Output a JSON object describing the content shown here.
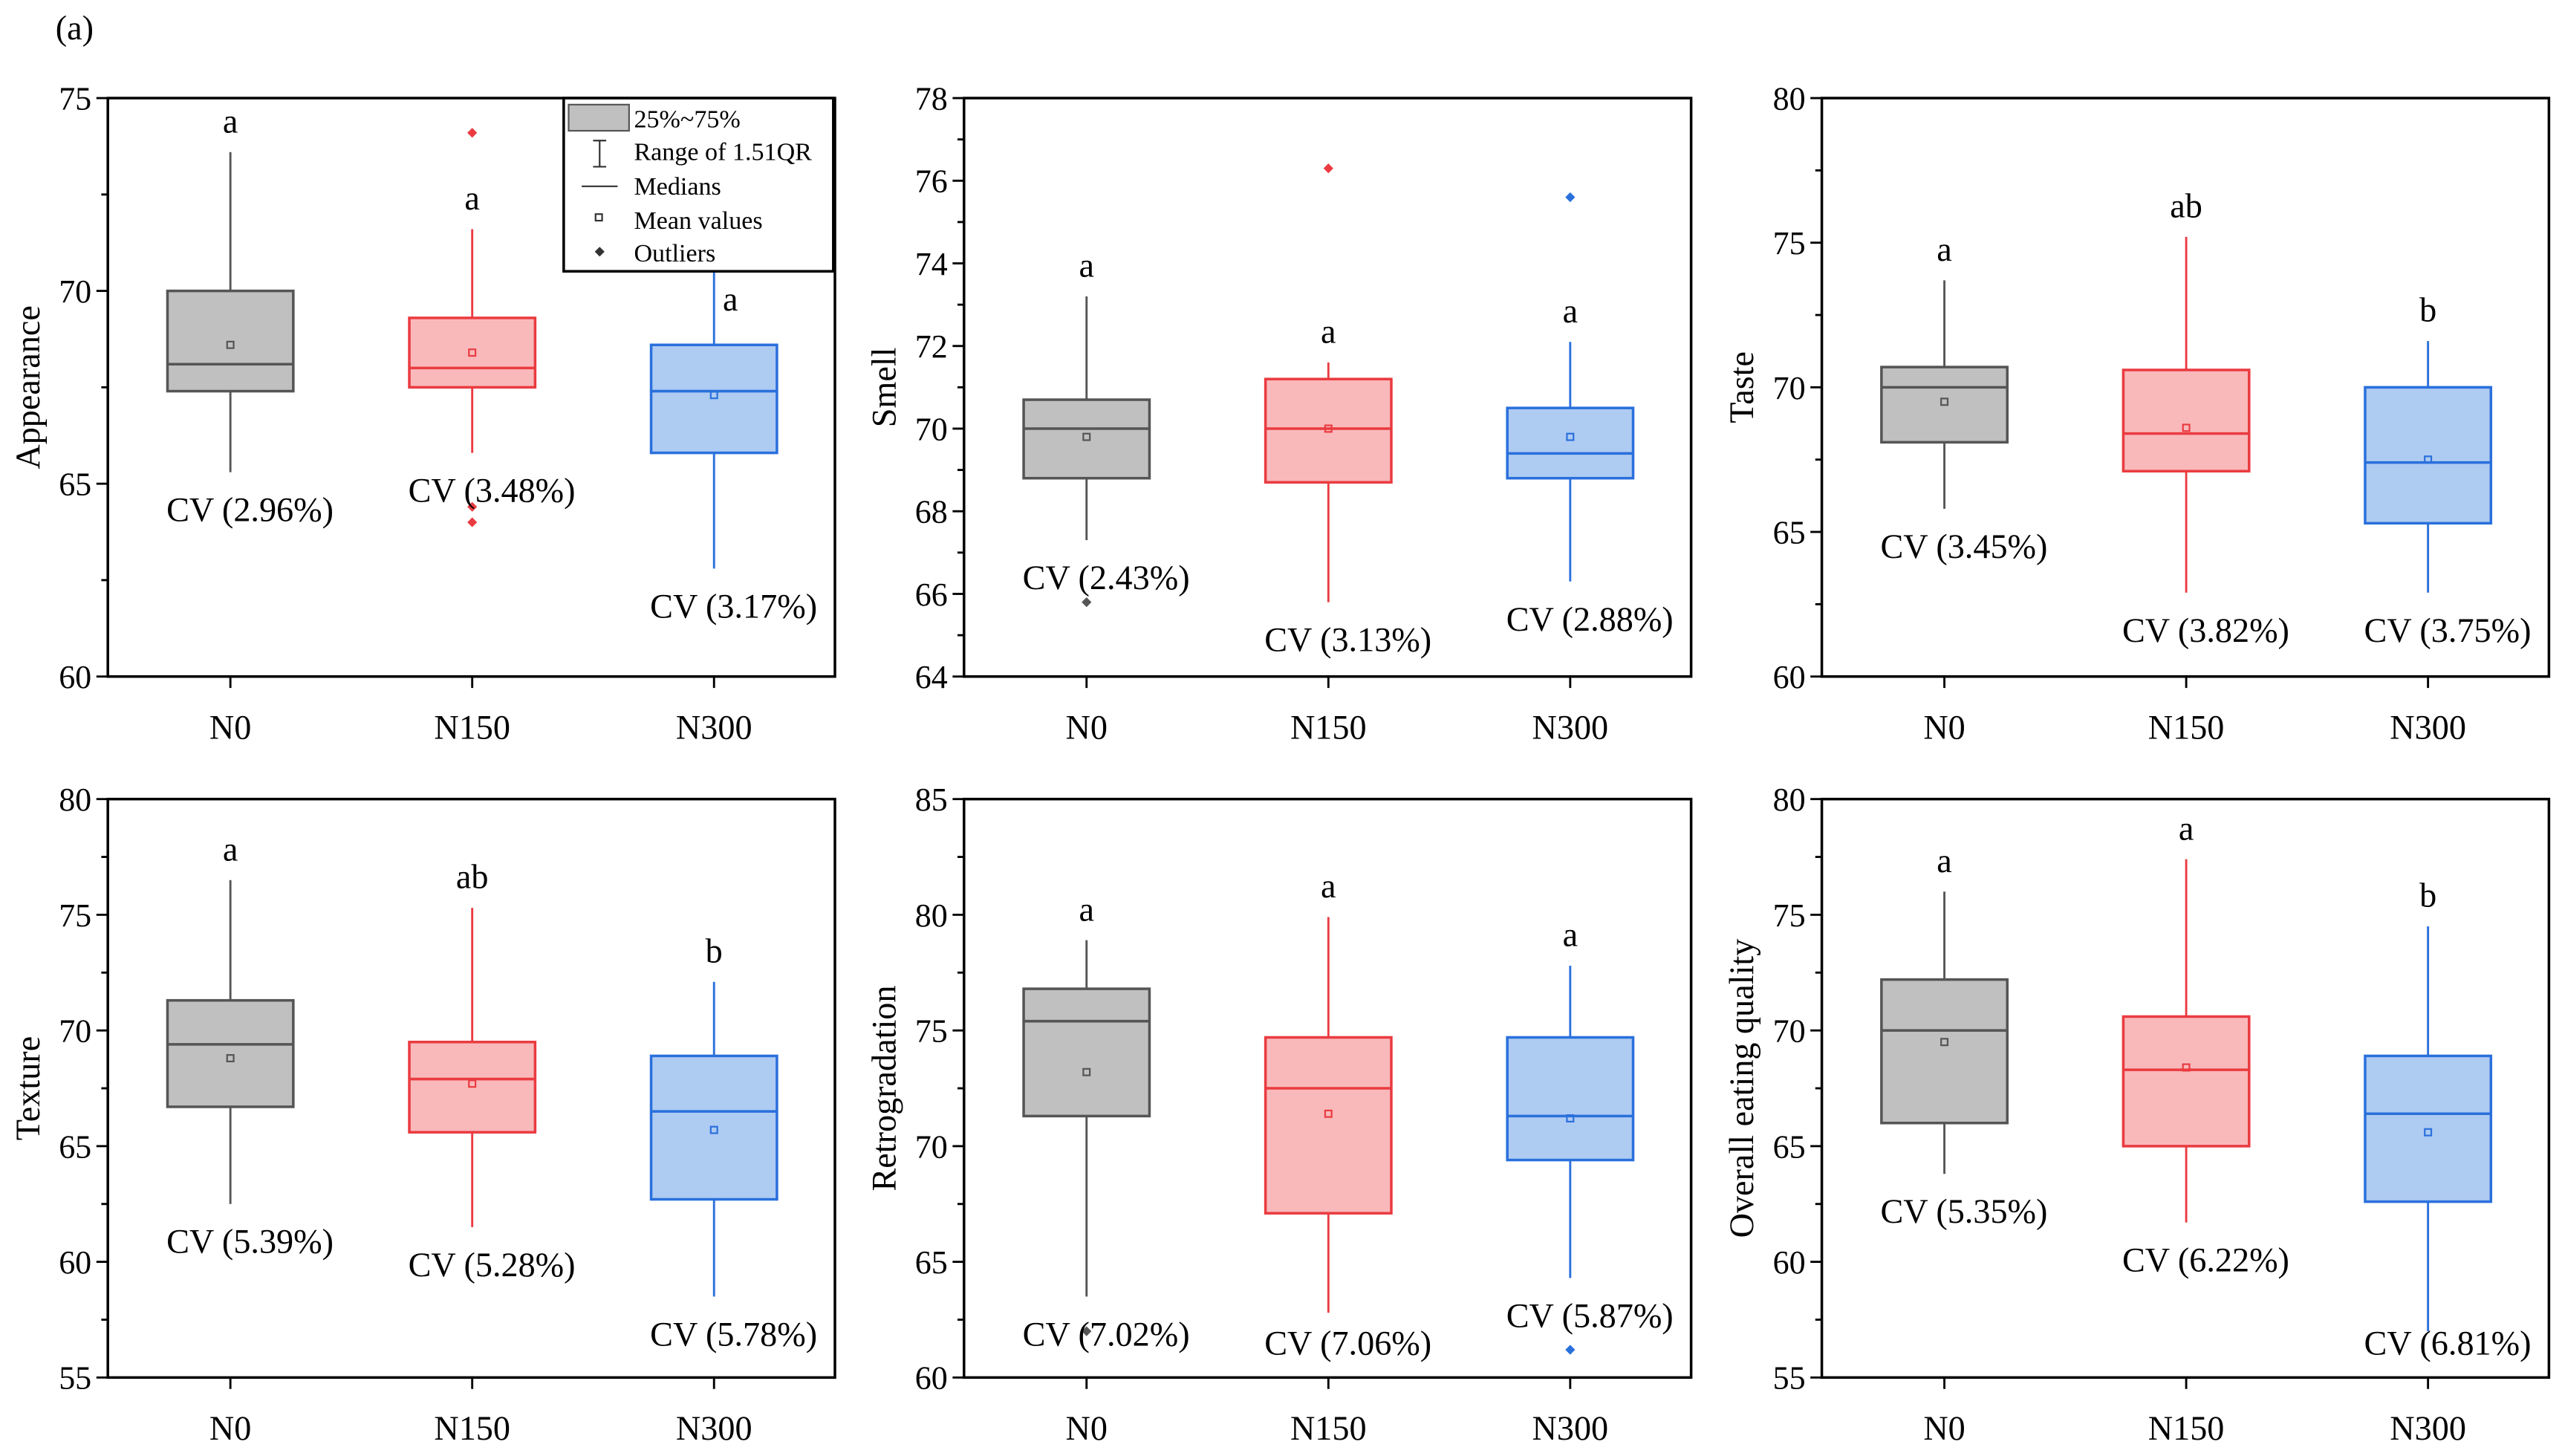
{
  "figure_label": "(a)",
  "legend": {
    "items": [
      "25%~75%",
      "Range of 1.51QR",
      "Medians",
      "Mean values",
      "Outliers"
    ]
  },
  "colors": {
    "N0": {
      "fill": "#c0c0c0",
      "stroke": "#555555"
    },
    "N150": {
      "fill": "#f9b9bb",
      "stroke": "#ea3b40"
    },
    "N300": {
      "fill": "#aecbf2",
      "stroke": "#2a70dc"
    }
  },
  "chart_data": [
    {
      "type": "box",
      "ylabel": "Appearance",
      "ylim": [
        60,
        75
      ],
      "yticks": [
        "60",
        "65",
        "70",
        "75"
      ],
      "ystep": 5,
      "categories": [
        "N0",
        "N150",
        "N300"
      ],
      "boxes": [
        {
          "min": 65.3,
          "q1": 67.4,
          "median": 68.1,
          "q3": 70.0,
          "max": 73.6,
          "mean": 68.6,
          "outliers": [],
          "letter": "a",
          "cv": "CV (2.96%)"
        },
        {
          "min": 65.8,
          "q1": 67.5,
          "median": 68.0,
          "q3": 69.3,
          "max": 71.6,
          "mean": 68.4,
          "outliers": [
            74.1,
            64.4,
            64.0
          ],
          "letter": "a",
          "cv": "CV (3.48%)"
        },
        {
          "min": 62.8,
          "q1": 65.8,
          "median": 67.4,
          "q3": 68.6,
          "max": 70.5,
          "mean": 67.3,
          "outliers": [],
          "letter": "a",
          "cv": "CV (3.17%)"
        }
      ]
    },
    {
      "type": "box",
      "ylabel": "Smell",
      "ylim": [
        64,
        78
      ],
      "yticks": [
        "64",
        "66",
        "68",
        "70",
        "72",
        "74",
        "76",
        "78"
      ],
      "ystep": 2,
      "categories": [
        "N0",
        "N150",
        "N300"
      ],
      "boxes": [
        {
          "min": 67.3,
          "q1": 68.8,
          "median": 70.0,
          "q3": 70.7,
          "max": 73.2,
          "mean": 69.8,
          "outliers": [
            65.8
          ],
          "letter": "a",
          "cv": "CV (2.43%)"
        },
        {
          "min": 65.8,
          "q1": 68.7,
          "median": 70.0,
          "q3": 71.2,
          "max": 71.6,
          "mean": 70.0,
          "outliers": [
            76.3
          ],
          "letter": "a",
          "cv": "CV (3.13%)"
        },
        {
          "min": 66.3,
          "q1": 68.8,
          "median": 69.4,
          "q3": 70.5,
          "max": 72.1,
          "mean": 69.8,
          "outliers": [
            75.6
          ],
          "letter": "a",
          "cv": "CV (2.88%)"
        }
      ]
    },
    {
      "type": "box",
      "ylabel": "Taste",
      "ylim": [
        60,
        80
      ],
      "yticks": [
        "60",
        "65",
        "70",
        "75",
        "80"
      ],
      "ystep": 5,
      "categories": [
        "N0",
        "N150",
        "N300"
      ],
      "boxes": [
        {
          "min": 65.8,
          "q1": 68.1,
          "median": 70.0,
          "q3": 70.7,
          "max": 73.7,
          "mean": 69.5,
          "outliers": [],
          "letter": "a",
          "cv": "CV (3.45%)"
        },
        {
          "min": 62.9,
          "q1": 67.1,
          "median": 68.4,
          "q3": 70.6,
          "max": 75.2,
          "mean": 68.6,
          "outliers": [],
          "letter": "ab",
          "cv": "CV (3.82%)"
        },
        {
          "min": 62.9,
          "q1": 65.3,
          "median": 67.4,
          "q3": 70.0,
          "max": 71.6,
          "mean": 67.5,
          "outliers": [],
          "letter": "b",
          "cv": "CV (3.75%)"
        }
      ]
    },
    {
      "type": "box",
      "ylabel": "Texture",
      "ylim": [
        55,
        80
      ],
      "yticks": [
        "55",
        "60",
        "65",
        "70",
        "75",
        "80"
      ],
      "ystep": 5,
      "categories": [
        "N0",
        "N150",
        "N300"
      ],
      "boxes": [
        {
          "min": 62.5,
          "q1": 66.7,
          "median": 69.4,
          "q3": 71.3,
          "max": 76.5,
          "mean": 68.8,
          "outliers": [],
          "letter": "a",
          "cv": "CV (5.39%)"
        },
        {
          "min": 61.5,
          "q1": 65.6,
          "median": 67.9,
          "q3": 69.5,
          "max": 75.3,
          "mean": 67.7,
          "outliers": [],
          "letter": "ab",
          "cv": "CV (5.28%)"
        },
        {
          "min": 58.5,
          "q1": 62.7,
          "median": 66.5,
          "q3": 68.9,
          "max": 72.1,
          "mean": 65.7,
          "outliers": [],
          "letter": "b",
          "cv": "CV (5.78%)"
        }
      ]
    },
    {
      "type": "box",
      "ylabel": "Retrogradation",
      "ylim": [
        60,
        85
      ],
      "yticks": [
        "60",
        "65",
        "70",
        "75",
        "80",
        "85"
      ],
      "ystep": 5,
      "categories": [
        "N0",
        "N150",
        "N300"
      ],
      "boxes": [
        {
          "min": 63.5,
          "q1": 71.3,
          "median": 75.4,
          "q3": 76.8,
          "max": 78.9,
          "mean": 73.2,
          "outliers": [
            62.0
          ],
          "letter": "a",
          "cv": "CV (7.02%)"
        },
        {
          "min": 62.8,
          "q1": 67.1,
          "median": 72.5,
          "q3": 74.7,
          "max": 79.9,
          "mean": 71.4,
          "outliers": [],
          "letter": "a",
          "cv": "CV (7.06%)"
        },
        {
          "min": 64.3,
          "q1": 69.4,
          "median": 71.3,
          "q3": 74.7,
          "max": 77.8,
          "mean": 71.2,
          "outliers": [
            61.2
          ],
          "letter": "a",
          "cv": "CV (5.87%)"
        }
      ]
    },
    {
      "type": "box",
      "ylabel": "Overall eating quality",
      "ylim": [
        55,
        80
      ],
      "yticks": [
        "55",
        "60",
        "65",
        "70",
        "75",
        "80"
      ],
      "ystep": 5,
      "categories": [
        "N0",
        "N150",
        "N300"
      ],
      "boxes": [
        {
          "min": 63.8,
          "q1": 66.0,
          "median": 70.0,
          "q3": 72.2,
          "max": 76.0,
          "mean": 69.5,
          "outliers": [],
          "letter": "a",
          "cv": "CV (5.35%)"
        },
        {
          "min": 61.7,
          "q1": 65.0,
          "median": 68.3,
          "q3": 70.6,
          "max": 77.4,
          "mean": 68.4,
          "outliers": [],
          "letter": "a",
          "cv": "CV (6.22%)"
        },
        {
          "min": 57.0,
          "q1": 62.6,
          "median": 66.4,
          "q3": 68.9,
          "max": 74.5,
          "mean": 65.6,
          "outliers": [],
          "letter": "b",
          "cv": "CV (6.81%)"
        }
      ]
    }
  ]
}
